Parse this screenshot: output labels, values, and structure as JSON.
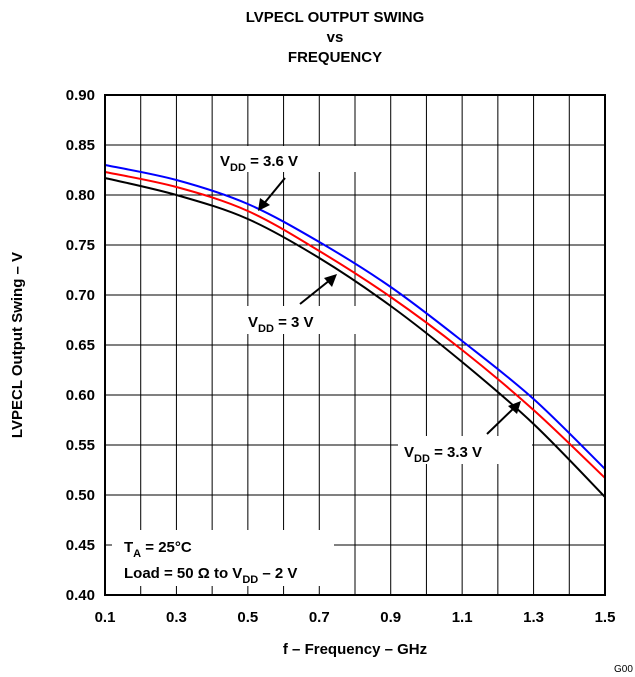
{
  "chart_data": {
    "type": "line",
    "title_lines": [
      "LVPECL OUTPUT SWING",
      "vs",
      "FREQUENCY"
    ],
    "xlabel": "f – Frequency – GHz",
    "ylabel": "LVPECL Output Swing – V",
    "xlim": [
      0.1,
      1.5
    ],
    "ylim": [
      0.4,
      0.9
    ],
    "x_ticks": [
      "0.1",
      "0.3",
      "0.5",
      "0.7",
      "0.9",
      "1.1",
      "1.3",
      "1.5"
    ],
    "y_ticks": [
      "0.40",
      "0.45",
      "0.50",
      "0.55",
      "0.60",
      "0.65",
      "0.70",
      "0.75",
      "0.80",
      "0.85",
      "0.90"
    ],
    "grid": true,
    "x": [
      0.1,
      0.3,
      0.5,
      0.7,
      0.9,
      1.1,
      1.3,
      1.5
    ],
    "series": [
      {
        "name": "VDD = 3.6 V",
        "color": "#0000ff",
        "values": [
          0.83,
          0.815,
          0.791,
          0.753,
          0.708,
          0.654,
          0.596,
          0.526
        ]
      },
      {
        "name": "VDD = 3.3 V",
        "color": "#ff0000",
        "values": [
          0.823,
          0.808,
          0.784,
          0.744,
          0.698,
          0.645,
          0.585,
          0.517
        ]
      },
      {
        "name": "VDD = 3 V",
        "color": "#000000",
        "values": [
          0.817,
          0.8,
          0.776,
          0.737,
          0.689,
          0.633,
          0.571,
          0.498
        ]
      }
    ],
    "annotations": {
      "vdd36": {
        "main": "V",
        "sub": "DD",
        "rest": " = 3.6 V"
      },
      "vdd3": {
        "main": "V",
        "sub": "DD",
        "rest": " = 3 V"
      },
      "vdd33": {
        "main": "V",
        "sub": "DD",
        "rest": " = 3.3 V"
      },
      "conditions_line1": {
        "main": "T",
        "sub": "A",
        "rest": " = 25°C"
      },
      "conditions_line2": {
        "pre": "Load = 50 Ω to V",
        "sub": "DD",
        "rest": " – 2 V"
      }
    },
    "figure_id": "G00"
  }
}
